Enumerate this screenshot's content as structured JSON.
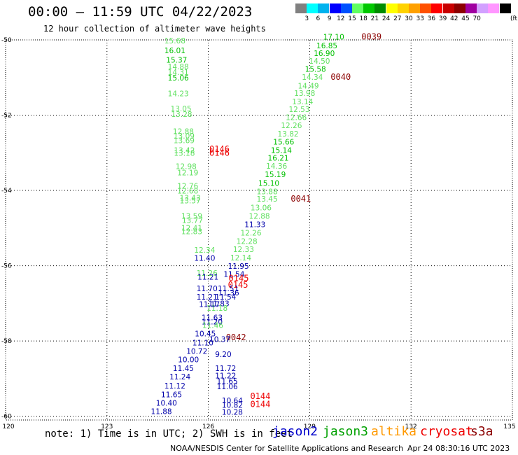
{
  "header": {
    "title": "00:00 – 11:59 UTC 04/22/2023",
    "subtitle": "12 hour collection of altimeter wave heights"
  },
  "colorbar": {
    "unit_label": "(ft)",
    "swatches": [
      "#808080",
      "#00ffff",
      "#00b2ee",
      "#0000ff",
      "#0050ff",
      "#60ff60",
      "#00c800",
      "#008c00",
      "#ffff00",
      "#ffd200",
      "#ffa000",
      "#ff5000",
      "#ff0000",
      "#c80000",
      "#8c0000",
      "#a000a0",
      "#d2a0ff",
      "#ff96ff",
      "#000000"
    ],
    "labels": [
      "3",
      "6",
      "9",
      "12",
      "15",
      "18",
      "21",
      "24",
      "27",
      "30",
      "33",
      "36",
      "39",
      "42",
      "45",
      "70"
    ]
  },
  "axes": {
    "lon_ticks": [
      "120",
      "123",
      "126",
      "129",
      "132",
      "135"
    ],
    "lat_ticks": [
      "-50",
      "-52",
      "-54",
      "-56",
      "-58",
      "-60"
    ]
  },
  "satellite_colors": {
    "jason2": "#0000cc",
    "jason3": "#00a000",
    "altika": "#ff9900",
    "cryosat": "#ee0000",
    "s3a": "#8b0000",
    "swh_9_12": "#0000aa",
    "swh_12_15": "#60e060",
    "swh_15_18": "#00c000",
    "swh_18_21": "#008c00"
  },
  "tracks": [
    {
      "time": "0039",
      "time_lon": 130.53,
      "time_lat": -49.99,
      "time_color": "#8b0000",
      "points": [
        {
          "v": "17.10",
          "lon": 129.4,
          "lat": -49.99,
          "c": "#00c000"
        },
        {
          "v": "16.85",
          "lon": 129.2,
          "lat": -50.22,
          "c": "#00c000"
        },
        {
          "v": "16.90",
          "lon": 129.12,
          "lat": -50.43,
          "c": "#00c000"
        },
        {
          "v": "14.50",
          "lon": 128.98,
          "lat": -50.63,
          "c": "#60e060"
        },
        {
          "v": "15.58",
          "lon": 128.86,
          "lat": -50.85,
          "c": "#00c000"
        },
        {
          "v": "14.34",
          "lon": 128.77,
          "lat": -51.06,
          "c": "#60e060"
        }
      ]
    },
    {
      "time": "0040",
      "time_lon": 129.62,
      "time_lat": -51.06,
      "time_color": "#8b0000",
      "points": [
        {
          "v": "14.49",
          "lon": 128.65,
          "lat": -51.29,
          "c": "#60e060"
        },
        {
          "v": "13.98",
          "lon": 128.54,
          "lat": -51.49,
          "c": "#60e060"
        },
        {
          "v": "13.14",
          "lon": 128.48,
          "lat": -51.71,
          "c": "#60e060"
        },
        {
          "v": "12.53",
          "lon": 128.38,
          "lat": -51.92,
          "c": "#60e060"
        },
        {
          "v": "12.66",
          "lon": 128.29,
          "lat": -52.13,
          "c": "#60e060"
        },
        {
          "v": "12.26",
          "lon": 128.15,
          "lat": -52.34,
          "c": "#60e060"
        },
        {
          "v": "13.82",
          "lon": 128.05,
          "lat": -52.57,
          "c": "#60e060"
        },
        {
          "v": "15.66",
          "lon": 127.92,
          "lat": -52.78,
          "c": "#00c000"
        },
        {
          "v": "15.14",
          "lon": 127.85,
          "lat": -53.0,
          "c": "#00c000"
        },
        {
          "v": "16.21",
          "lon": 127.76,
          "lat": -53.21,
          "c": "#00c000"
        },
        {
          "v": "14.36",
          "lon": 127.71,
          "lat": -53.42,
          "c": "#60e060"
        },
        {
          "v": "15.19",
          "lon": 127.67,
          "lat": -53.65,
          "c": "#00c000"
        },
        {
          "v": "15.10",
          "lon": 127.48,
          "lat": -53.88,
          "c": "#00c000"
        },
        {
          "v": "13.88",
          "lon": 127.43,
          "lat": -54.1,
          "c": "#60e060"
        },
        {
          "v": "13.45",
          "lon": 127.43,
          "lat": -54.3,
          "c": "#60e060"
        }
      ]
    },
    {
      "time": "0041",
      "time_lon": 128.44,
      "time_lat": -54.3,
      "time_color": "#8b0000",
      "points": [
        {
          "v": "13.06",
          "lon": 127.25,
          "lat": -54.53,
          "c": "#60e060"
        },
        {
          "v": "12.88",
          "lon": 127.2,
          "lat": -54.75,
          "c": "#60e060"
        },
        {
          "v": "11.33",
          "lon": 127.07,
          "lat": -54.98,
          "c": "#0000aa"
        },
        {
          "v": "12.26",
          "lon": 126.95,
          "lat": -55.2,
          "c": "#60e060"
        },
        {
          "v": "12.28",
          "lon": 126.83,
          "lat": -55.42,
          "c": "#60e060"
        },
        {
          "v": "12.33",
          "lon": 126.73,
          "lat": -55.64,
          "c": "#60e060"
        },
        {
          "v": "12.14",
          "lon": 126.65,
          "lat": -55.86,
          "c": "#60e060"
        },
        {
          "v": "11.95",
          "lon": 126.58,
          "lat": -56.08,
          "c": "#0000aa"
        },
        {
          "v": "11.54",
          "lon": 126.45,
          "lat": -56.3,
          "c": "#0000aa"
        },
        {
          "v": "11.36",
          "lon": 126.29,
          "lat": -56.79,
          "c": "#0000aa"
        },
        {
          "v": "11.83",
          "lon": 126.0,
          "lat": -57.08,
          "c": "#0000aa"
        },
        {
          "v": "11.18",
          "lon": 125.95,
          "lat": -57.2,
          "c": "#60e060"
        }
      ]
    },
    {
      "time": "0145",
      "time_lon": 126.6,
      "time_lat": -56.41,
      "time_color": "#ee0000",
      "points": []
    },
    {
      "time": "0145",
      "time_lon": 126.58,
      "time_lat": -56.58,
      "time_color": "#ee0000",
      "points": []
    },
    {
      "time": "0146",
      "time_lon": 126.03,
      "time_lat": -52.98,
      "time_color": "#ee0000",
      "points": []
    },
    {
      "time": "0146",
      "time_lon": 126.03,
      "time_lat": -53.08,
      "time_color": "#ee0000",
      "points": []
    },
    {
      "time": "0144",
      "time_lon": 127.24,
      "time_lat": -59.54,
      "time_color": "#ee0000",
      "points": []
    },
    {
      "time": "0144",
      "time_lon": 127.24,
      "time_lat": -59.76,
      "time_color": "#ee0000",
      "points": []
    },
    {
      "time": "0042",
      "time_lon": 126.52,
      "time_lat": -57.98,
      "time_color": "#8b0000",
      "points": []
    },
    {
      "time": "",
      "time_lon": 0,
      "time_lat": 0,
      "time_color": "#000000",
      "points": [
        {
          "v": "15.68",
          "lon": 124.7,
          "lat": -50.09,
          "c": "#60e060"
        },
        {
          "v": "16.01",
          "lon": 124.7,
          "lat": -50.35,
          "c": "#00c000"
        },
        {
          "v": "15.37",
          "lon": 124.75,
          "lat": -50.6,
          "c": "#00c000"
        },
        {
          "v": "14.88",
          "lon": 124.8,
          "lat": -50.78,
          "c": "#60e060"
        },
        {
          "v": "14.31",
          "lon": 124.8,
          "lat": -50.93,
          "c": "#60e060"
        },
        {
          "v": "15.06",
          "lon": 124.8,
          "lat": -51.08,
          "c": "#00c000"
        },
        {
          "v": "14.23",
          "lon": 124.8,
          "lat": -51.5,
          "c": "#60e060"
        },
        {
          "v": "13.05",
          "lon": 124.88,
          "lat": -51.9,
          "c": "#60e060"
        },
        {
          "v": "13.28",
          "lon": 124.9,
          "lat": -52.05,
          "c": "#60e060"
        },
        {
          "v": "12.88",
          "lon": 124.95,
          "lat": -52.5,
          "c": "#60e060"
        },
        {
          "v": "13.09",
          "lon": 124.97,
          "lat": -52.62,
          "c": "#60e060"
        },
        {
          "v": "13.69",
          "lon": 124.97,
          "lat": -52.74,
          "c": "#60e060"
        },
        {
          "v": "13.42",
          "lon": 124.98,
          "lat": -53.0,
          "c": "#60e060"
        },
        {
          "v": "13.18",
          "lon": 124.98,
          "lat": -53.08,
          "c": "#60e060"
        },
        {
          "v": "12.98",
          "lon": 125.03,
          "lat": -53.43,
          "c": "#60e060"
        },
        {
          "v": "12.19",
          "lon": 125.08,
          "lat": -53.6,
          "c": "#60e060"
        },
        {
          "v": "12.76",
          "lon": 125.08,
          "lat": -53.95,
          "c": "#60e060"
        },
        {
          "v": "12.68",
          "lon": 125.08,
          "lat": -54.08,
          "c": "#60e060"
        },
        {
          "v": "13.43",
          "lon": 125.15,
          "lat": -54.27,
          "c": "#60e060"
        },
        {
          "v": "13.57",
          "lon": 125.15,
          "lat": -54.34,
          "c": "#60e060"
        },
        {
          "v": "13.59",
          "lon": 125.2,
          "lat": -54.75,
          "c": "#60e060"
        },
        {
          "v": "13.77",
          "lon": 125.22,
          "lat": -54.86,
          "c": "#60e060"
        },
        {
          "v": "12.41",
          "lon": 125.2,
          "lat": -55.07,
          "c": "#60e060"
        },
        {
          "v": "12.83",
          "lon": 125.2,
          "lat": -55.16,
          "c": "#60e060"
        },
        {
          "v": "12.34",
          "lon": 125.58,
          "lat": -55.65,
          "c": "#60e060"
        },
        {
          "v": "11.40",
          "lon": 125.58,
          "lat": -55.87,
          "c": "#0000aa"
        },
        {
          "v": "11.26",
          "lon": 125.65,
          "lat": -56.27,
          "c": "#60e060"
        },
        {
          "v": "11.21",
          "lon": 125.68,
          "lat": -56.37,
          "c": "#0000aa"
        },
        {
          "v": "11.70",
          "lon": 125.65,
          "lat": -56.68,
          "c": "#0000aa"
        },
        {
          "v": "11.21",
          "lon": 125.65,
          "lat": -56.9,
          "c": "#0000aa"
        },
        {
          "v": "11.51",
          "lon": 126.28,
          "lat": -56.68,
          "c": "#0000aa"
        },
        {
          "v": "11.54",
          "lon": 126.2,
          "lat": -56.9,
          "c": "#0000aa"
        },
        {
          "v": "11.17",
          "lon": 125.72,
          "lat": -57.1,
          "c": "#0000aa"
        },
        {
          "v": "11.63",
          "lon": 125.8,
          "lat": -57.45,
          "c": "#0000aa"
        },
        {
          "v": "11.20",
          "lon": 125.8,
          "lat": -57.56,
          "c": "#0000aa"
        },
        {
          "v": "11.46",
          "lon": 125.82,
          "lat": -57.65,
          "c": "#60e060"
        },
        {
          "v": "10.45",
          "lon": 125.6,
          "lat": -57.88,
          "c": "#0000aa"
        },
        {
          "v": "11.10",
          "lon": 125.53,
          "lat": -58.12,
          "c": "#0000aa"
        },
        {
          "v": "10.37",
          "lon": 126.03,
          "lat": -58.03,
          "c": "#0000aa"
        },
        {
          "v": "10.72",
          "lon": 125.35,
          "lat": -58.34,
          "c": "#0000aa"
        },
        {
          "v": "9.20",
          "lon": 126.2,
          "lat": -58.43,
          "c": "#0000aa"
        },
        {
          "v": "10.00",
          "lon": 125.1,
          "lat": -58.57,
          "c": "#0000aa"
        },
        {
          "v": "11.45",
          "lon": 124.95,
          "lat": -58.8,
          "c": "#0000aa"
        },
        {
          "v": "11.72",
          "lon": 126.2,
          "lat": -58.8,
          "c": "#0000aa"
        },
        {
          "v": "11.22",
          "lon": 126.2,
          "lat": -58.99,
          "c": "#0000aa"
        },
        {
          "v": "11.24",
          "lon": 124.85,
          "lat": -59.02,
          "c": "#0000aa"
        },
        {
          "v": "11.65",
          "lon": 126.25,
          "lat": -59.14,
          "c": "#0000aa"
        },
        {
          "v": "11.12",
          "lon": 124.7,
          "lat": -59.26,
          "c": "#0000aa"
        },
        {
          "v": "11.06",
          "lon": 126.25,
          "lat": -59.28,
          "c": "#0000aa"
        },
        {
          "v": "11.65",
          "lon": 124.6,
          "lat": -59.5,
          "c": "#0000aa"
        },
        {
          "v": "10.64",
          "lon": 126.4,
          "lat": -59.65,
          "c": "#0000aa"
        },
        {
          "v": "10.40",
          "lon": 124.45,
          "lat": -59.72,
          "c": "#0000aa"
        },
        {
          "v": "10.82",
          "lon": 126.4,
          "lat": -59.77,
          "c": "#0000aa"
        },
        {
          "v": "11.88",
          "lon": 124.3,
          "lat": -59.94,
          "c": "#0000aa"
        },
        {
          "v": "10.28",
          "lon": 126.4,
          "lat": -59.96,
          "c": "#0000aa"
        }
      ]
    }
  ],
  "note": "note: 1) Time is in UTC; 2) SWH is in feet",
  "legend": [
    {
      "name": "jason2",
      "color": "#0000cc"
    },
    {
      "name": "jason3",
      "color": "#00a000"
    },
    {
      "name": "altika",
      "color": "#ff9900"
    },
    {
      "name": "cryosat",
      "color": "#ee0000"
    },
    {
      "name": "s3a",
      "color": "#8b0000"
    }
  ],
  "footer": {
    "credit": "NOAA/NESDIS Center for Satellite Applications and Research",
    "generated": "Apr 24 08:30:16 UTC 2023"
  }
}
